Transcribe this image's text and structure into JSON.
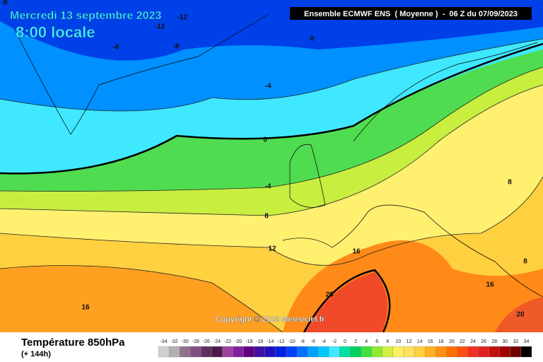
{
  "header": {
    "date": "Mercredi 13 septembre 2023",
    "time": "8:00 locale",
    "model": "Ensemble ECMWF ENS  ( Moyenne )  -  06 Z du 07/09/2023"
  },
  "map": {
    "contour_labels": [
      "-8",
      "-12",
      "-12",
      "-8",
      "-8",
      "-8",
      "-4",
      "0",
      "-4",
      "8",
      "8",
      "12",
      "16",
      "16",
      "8",
      "16",
      "20",
      "20"
    ],
    "copyright": "Copyright © 2023 Meteociel.fr"
  },
  "legend": {
    "title": "Température 850hPa",
    "lead": "(+ 144h)",
    "scale": [
      {
        "value": -34,
        "color": "#d0d0d0"
      },
      {
        "value": -32,
        "color": "#b0b0b0"
      },
      {
        "value": -30,
        "color": "#907090"
      },
      {
        "value": -28,
        "color": "#805080"
      },
      {
        "value": -26,
        "color": "#603060"
      },
      {
        "value": -24,
        "color": "#4a1a4a"
      },
      {
        "value": -22,
        "color": "#a040a0"
      },
      {
        "value": -20,
        "color": "#8020a0"
      },
      {
        "value": -18,
        "color": "#600080"
      },
      {
        "value": -16,
        "color": "#4010a0"
      },
      {
        "value": -14,
        "color": "#2010c0"
      },
      {
        "value": -12,
        "color": "#0020e0"
      },
      {
        "value": -10,
        "color": "#0040ff"
      },
      {
        "value": -8,
        "color": "#0070ff"
      },
      {
        "value": -6,
        "color": "#00a0ff"
      },
      {
        "value": -4,
        "color": "#00c8ff"
      },
      {
        "value": -2,
        "color": "#40e8ff"
      },
      {
        "value": 0,
        "color": "#00e0a0"
      },
      {
        "value": 2,
        "color": "#00d060"
      },
      {
        "value": 4,
        "color": "#40e040"
      },
      {
        "value": 6,
        "color": "#90e830"
      },
      {
        "value": 8,
        "color": "#d0f040"
      },
      {
        "value": 10,
        "color": "#fff060"
      },
      {
        "value": 12,
        "color": "#ffe060"
      },
      {
        "value": 14,
        "color": "#ffd040"
      },
      {
        "value": 16,
        "color": "#ffb020"
      },
      {
        "value": 18,
        "color": "#ff9010"
      },
      {
        "value": 20,
        "color": "#ff7000"
      },
      {
        "value": 22,
        "color": "#ff5010"
      },
      {
        "value": 24,
        "color": "#f03020"
      },
      {
        "value": 26,
        "color": "#e02020"
      },
      {
        "value": 28,
        "color": "#c01010"
      },
      {
        "value": 30,
        "color": "#a00000"
      },
      {
        "value": 32,
        "color": "#700000"
      },
      {
        "value": 34,
        "color": "#000000"
      }
    ]
  }
}
